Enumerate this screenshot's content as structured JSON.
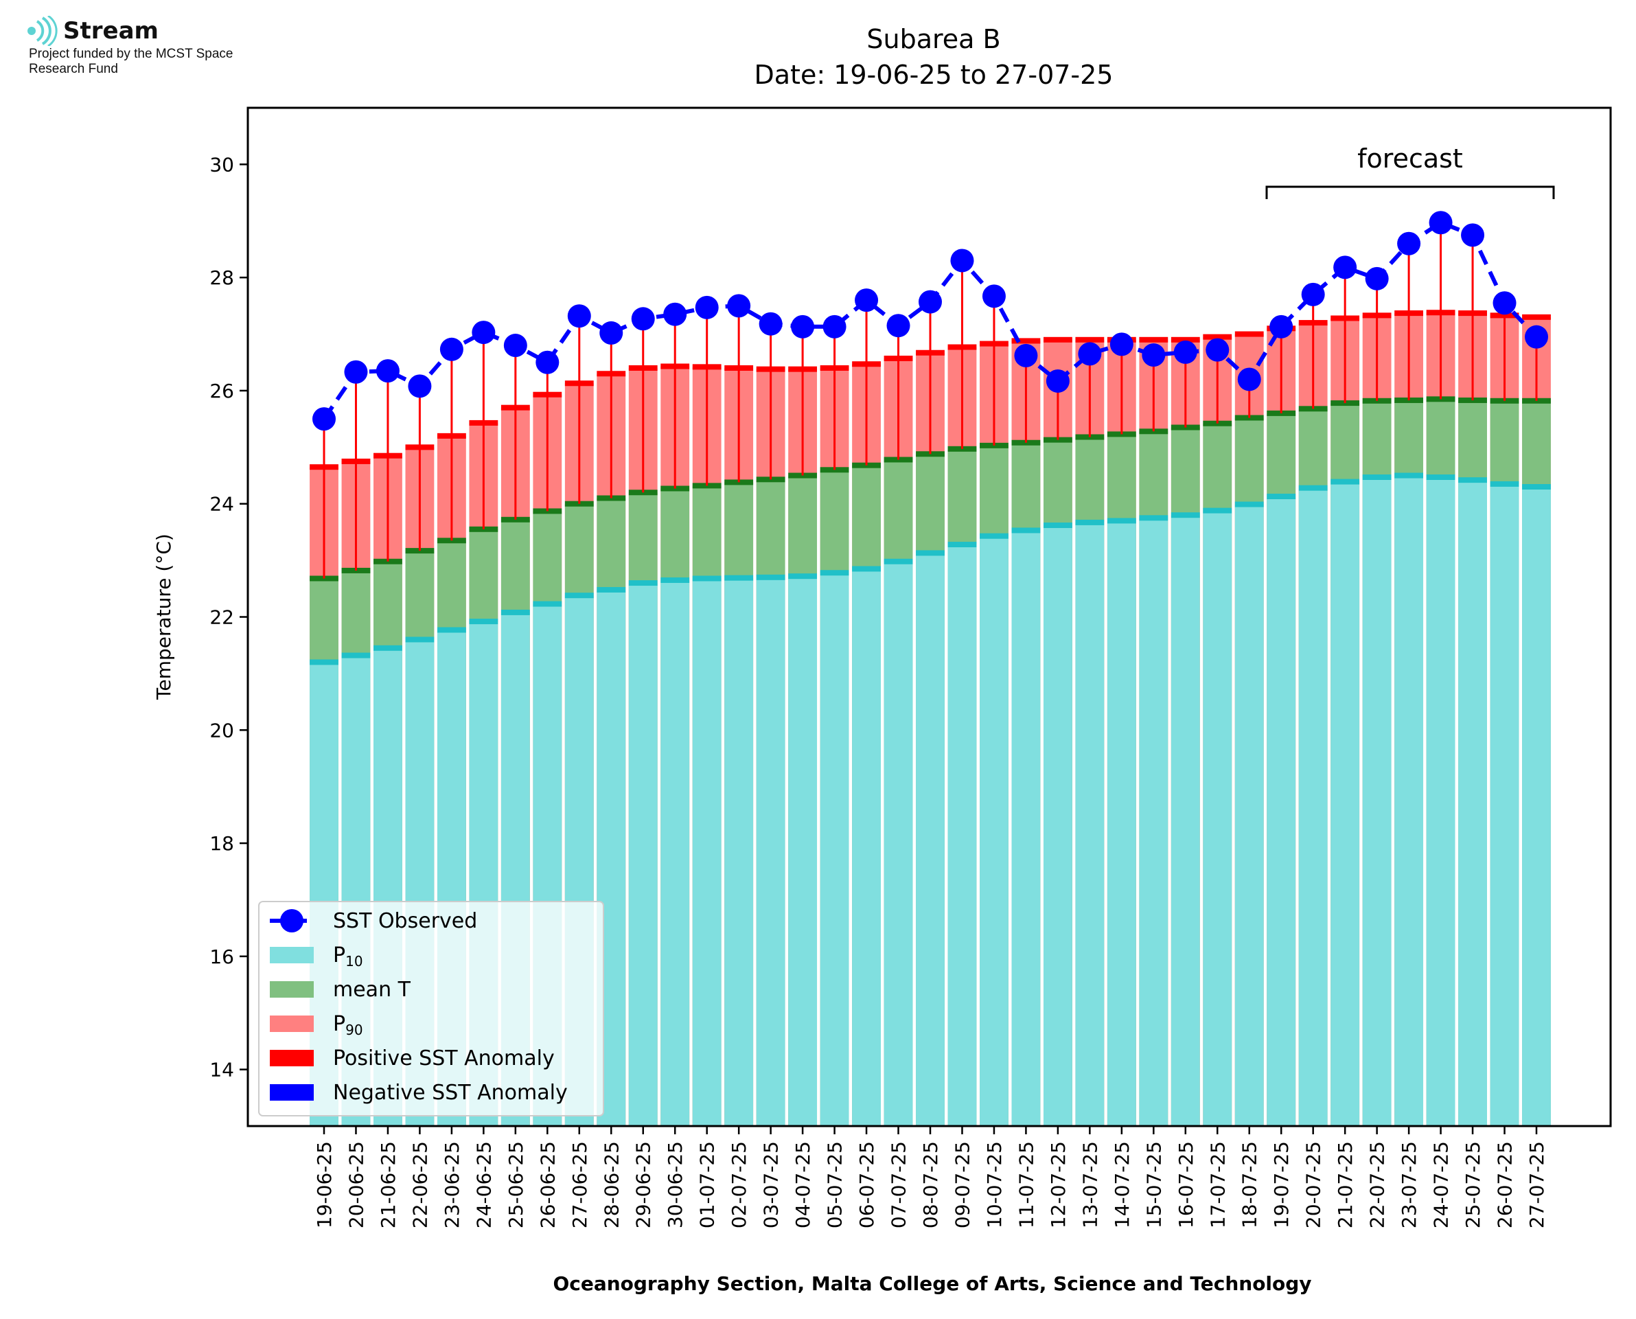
{
  "logo": {
    "name": "Stream",
    "funding_text": "Project funded by the MCST Space Research Fund"
  },
  "chart_data": {
    "type": "bar",
    "title": "Subarea B",
    "subtitle": "Date: 19-06-25 to 27-07-25",
    "xlabel": "Oceanography Section, Malta College of Arts, Science and Technology",
    "ylabel": "Temperature (°C)",
    "ylim": [
      13,
      31
    ],
    "yticks": [
      14,
      16,
      18,
      20,
      22,
      24,
      26,
      28,
      30
    ],
    "grid": false,
    "legend_position": "lower-left",
    "annotation": "forecast",
    "forecast_range": [
      "19-07-25",
      "27-07-25"
    ],
    "categories": [
      "19-06-25",
      "20-06-25",
      "21-06-25",
      "22-06-25",
      "23-06-25",
      "24-06-25",
      "25-06-25",
      "26-06-25",
      "27-06-25",
      "28-06-25",
      "29-06-25",
      "30-06-25",
      "01-07-25",
      "02-07-25",
      "03-07-25",
      "04-07-25",
      "05-07-25",
      "06-07-25",
      "07-07-25",
      "08-07-25",
      "09-07-25",
      "10-07-25",
      "11-07-25",
      "12-07-25",
      "13-07-25",
      "14-07-25",
      "15-07-25",
      "16-07-25",
      "17-07-25",
      "18-07-25",
      "19-07-25",
      "20-07-25",
      "21-07-25",
      "22-07-25",
      "23-07-25",
      "24-07-25",
      "25-07-25",
      "26-07-25",
      "27-07-25"
    ],
    "series": [
      {
        "name": "SST Observed",
        "style": "line-marker",
        "color": "#0000ff",
        "values": [
          25.5,
          26.33,
          26.35,
          26.08,
          26.73,
          27.03,
          26.8,
          26.5,
          27.32,
          27.02,
          27.27,
          27.35,
          27.47,
          27.5,
          27.18,
          27.13,
          27.13,
          27.6,
          27.15,
          27.57,
          28.3,
          27.67,
          26.62,
          26.17,
          26.65,
          26.82,
          26.63,
          26.68,
          26.72,
          26.2,
          27.13,
          27.7,
          28.18,
          27.98,
          28.6,
          28.97,
          28.75,
          27.55,
          26.95
        ]
      },
      {
        "name": "P10",
        "style": "bar",
        "color": "#80dfdf",
        "edge_color": "#20c0c8",
        "values": [
          21.2,
          21.32,
          21.45,
          21.6,
          21.77,
          21.92,
          22.08,
          22.23,
          22.38,
          22.48,
          22.6,
          22.65,
          22.68,
          22.69,
          22.7,
          22.72,
          22.78,
          22.85,
          22.98,
          23.13,
          23.28,
          23.43,
          23.53,
          23.62,
          23.67,
          23.7,
          23.75,
          23.8,
          23.88,
          23.99,
          24.13,
          24.28,
          24.39,
          24.47,
          24.5,
          24.47,
          24.42,
          24.35,
          24.3
        ]
      },
      {
        "name": "mean T",
        "style": "bar",
        "color": "#80c080",
        "edge_color": "#1a7a1a",
        "values": [
          22.68,
          22.82,
          22.98,
          23.17,
          23.35,
          23.55,
          23.72,
          23.87,
          24.0,
          24.1,
          24.2,
          24.27,
          24.32,
          24.38,
          24.43,
          24.5,
          24.6,
          24.68,
          24.78,
          24.88,
          24.97,
          25.03,
          25.08,
          25.13,
          25.18,
          25.23,
          25.28,
          25.35,
          25.42,
          25.52,
          25.6,
          25.68,
          25.78,
          25.82,
          25.83,
          25.85,
          25.83,
          25.82,
          25.82
        ]
      },
      {
        "name": "P90",
        "style": "bar",
        "color": "#ff8080",
        "edge_color": "#ff0000",
        "values": [
          24.65,
          24.75,
          24.85,
          25.0,
          25.2,
          25.43,
          25.7,
          25.93,
          26.13,
          26.3,
          26.4,
          26.43,
          26.42,
          26.4,
          26.38,
          26.38,
          26.4,
          26.47,
          26.57,
          26.67,
          26.77,
          26.83,
          26.88,
          26.9,
          26.9,
          26.9,
          26.9,
          26.9,
          26.95,
          27.0,
          27.1,
          27.2,
          27.28,
          27.33,
          27.37,
          27.38,
          27.37,
          27.33,
          27.3
        ]
      },
      {
        "name": "Positive SST Anomaly",
        "style": "vertical-line",
        "color": "#ff0000"
      },
      {
        "name": "Negative SST Anomaly",
        "style": "vertical-line",
        "color": "#0000ff"
      }
    ]
  }
}
